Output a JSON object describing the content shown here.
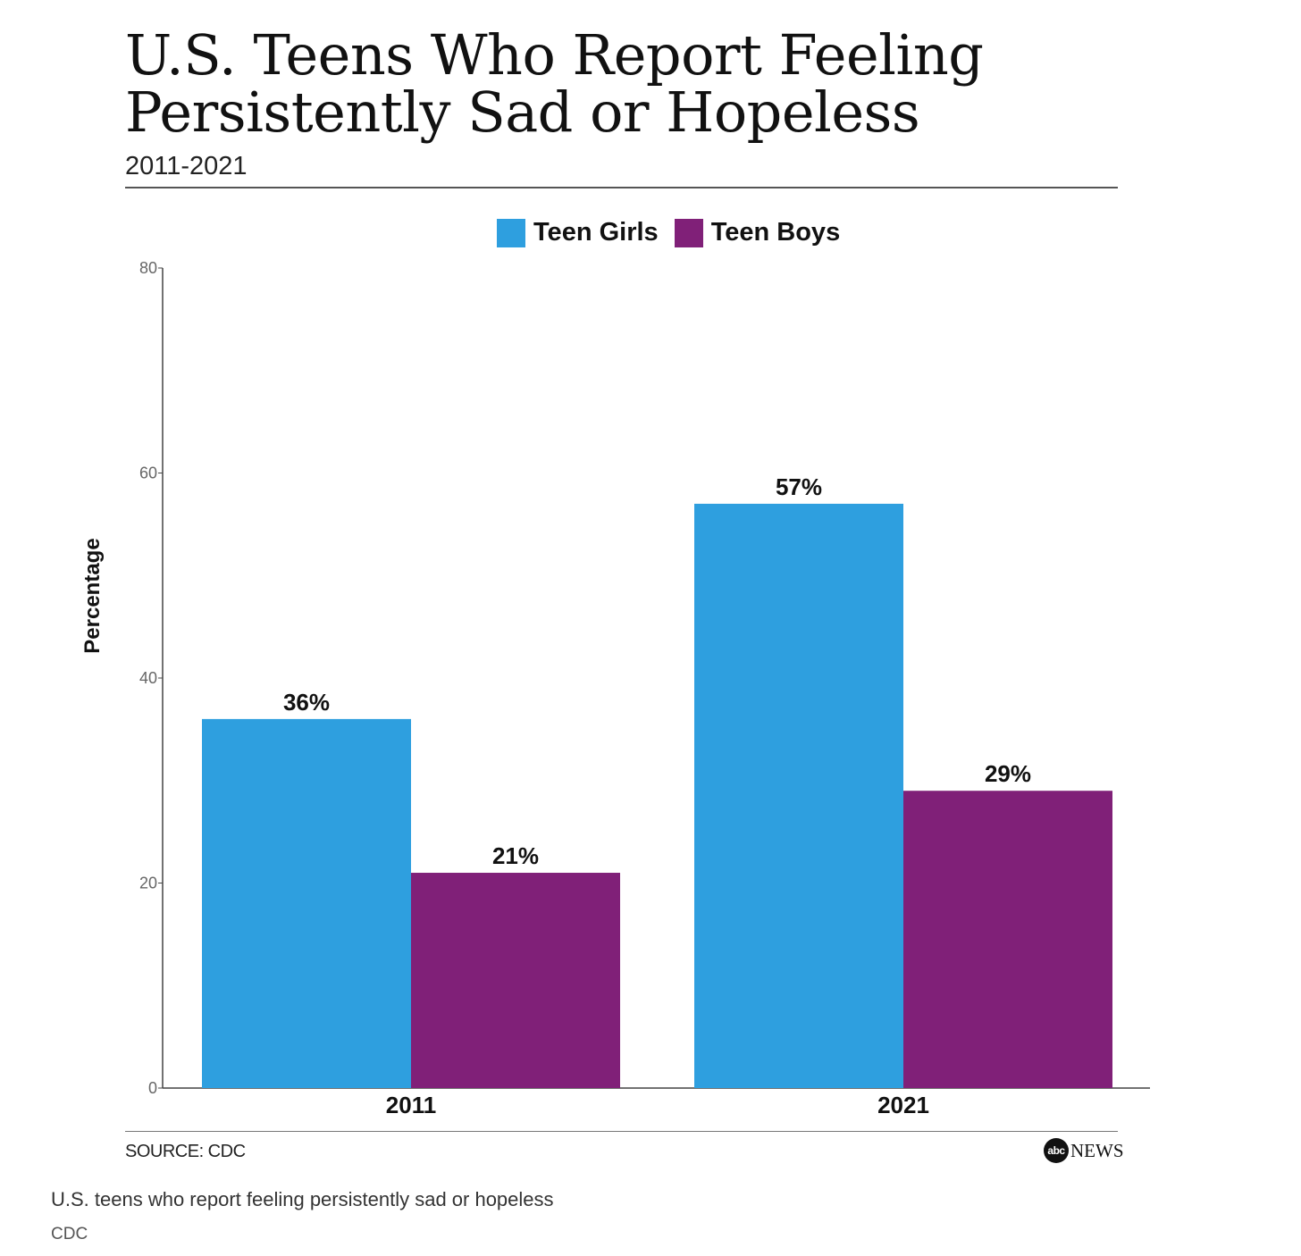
{
  "chart_data": {
    "type": "bar",
    "title": "U.S. Teens Who Report Feeling Persistently Sad or Hopeless",
    "subtitle": "2011-2021",
    "xlabel": "",
    "ylabel": "Percentage",
    "ylim": [
      0,
      80
    ],
    "yticks": [
      0,
      20,
      40,
      60,
      80
    ],
    "categories": [
      "2011",
      "2021"
    ],
    "series": [
      {
        "name": "Teen Girls",
        "color": "#2e9fdf",
        "values": [
          36,
          57
        ],
        "labels": [
          "36%",
          "57%"
        ]
      },
      {
        "name": "Teen Boys",
        "color": "#802078",
        "values": [
          21,
          29
        ],
        "labels": [
          "21%",
          "29%"
        ]
      }
    ],
    "legend_position": "top-center",
    "grid": false
  },
  "source": "SOURCE: CDC",
  "logo": {
    "mark": "abc",
    "word": "NEWS"
  },
  "caption": "U.S. teens who report feeling persistently sad or hopeless",
  "credit": "CDC"
}
